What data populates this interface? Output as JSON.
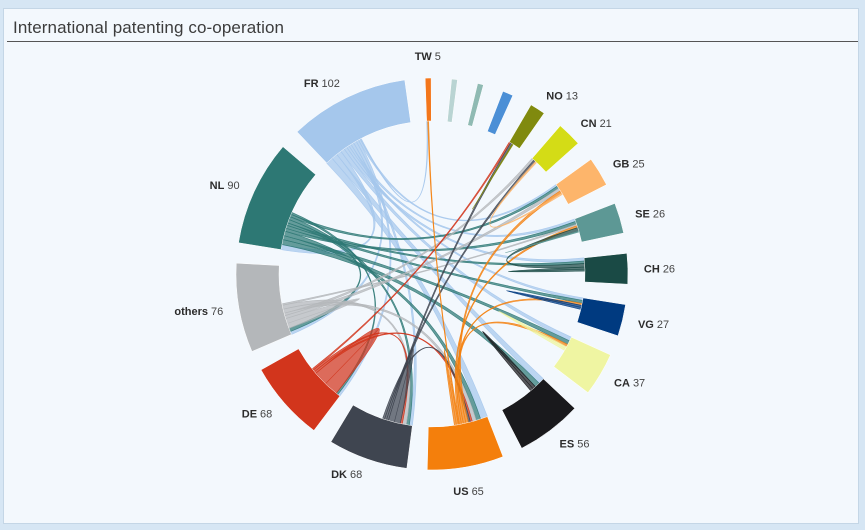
{
  "header": {
    "title": "International patenting co-operation"
  },
  "chart_data": {
    "type": "chord",
    "title": "International patenting co-operation",
    "nodes": [
      {
        "code": "TW",
        "value": 5,
        "color": "#f3761b"
      },
      {
        "code": "",
        "value": 5,
        "color": "#b9d4d3"
      },
      {
        "code": "",
        "value": 5,
        "color": "#8fbab3"
      },
      {
        "code": "",
        "value": 9,
        "color": "#4b8fd6"
      },
      {
        "code": "NO",
        "value": 13,
        "color": "#808a0e"
      },
      {
        "code": "CN",
        "value": 21,
        "color": "#d4dc16"
      },
      {
        "code": "GB",
        "value": 25,
        "color": "#fdb56b"
      },
      {
        "code": "SE",
        "value": 26,
        "color": "#5d9895"
      },
      {
        "code": "CH",
        "value": 26,
        "color": "#1a4a45"
      },
      {
        "code": "VG",
        "value": 27,
        "color": "#003a80"
      },
      {
        "code": "CA",
        "value": 37,
        "color": "#eff5a2"
      },
      {
        "code": "ES",
        "value": 56,
        "color": "#19191c"
      },
      {
        "code": "US",
        "value": 65,
        "color": "#f47f0c"
      },
      {
        "code": "DK",
        "value": 68,
        "color": "#3f4550"
      },
      {
        "code": "DE",
        "value": 68,
        "color": "#d2351c"
      },
      {
        "code": "others",
        "value": 76,
        "color": "#b4b7ba"
      },
      {
        "code": "NL",
        "value": 90,
        "color": "#2d7874"
      },
      {
        "code": "FR",
        "value": 102,
        "color": "#a5c7ec"
      }
    ],
    "links": [
      {
        "source": "FR",
        "target": "US",
        "value": 14
      },
      {
        "source": "FR",
        "target": "ES",
        "value": 12
      },
      {
        "source": "FR",
        "target": "NL",
        "value": 10
      },
      {
        "source": "FR",
        "target": "CA",
        "value": 8
      },
      {
        "source": "FR",
        "target": "CH",
        "value": 6
      },
      {
        "source": "FR",
        "target": "VG",
        "value": 5
      },
      {
        "source": "FR",
        "target": "SE",
        "value": 5
      },
      {
        "source": "FR",
        "target": "DK",
        "value": 6
      },
      {
        "source": "FR",
        "target": "others",
        "value": 6
      },
      {
        "source": "FR",
        "target": "DE",
        "value": 5
      },
      {
        "source": "FR",
        "target": "GB",
        "value": 4
      },
      {
        "source": "FR",
        "target": "TW",
        "value": 2
      },
      {
        "source": "NL",
        "target": "ES",
        "value": 10
      },
      {
        "source": "NL",
        "target": "CA",
        "value": 8
      },
      {
        "source": "NL",
        "target": "US",
        "value": 9
      },
      {
        "source": "NL",
        "target": "SE",
        "value": 6
      },
      {
        "source": "NL",
        "target": "VG",
        "value": 6
      },
      {
        "source": "NL",
        "target": "CH",
        "value": 5
      },
      {
        "source": "NL",
        "target": "others",
        "value": 7
      },
      {
        "source": "NL",
        "target": "DK",
        "value": 6
      },
      {
        "source": "NL",
        "target": "GB",
        "value": 5
      },
      {
        "source": "NL",
        "target": "DE",
        "value": 4
      },
      {
        "source": "others",
        "target": "others",
        "value": 10
      },
      {
        "source": "others",
        "target": "GB",
        "value": 6
      },
      {
        "source": "others",
        "target": "CN",
        "value": 5
      },
      {
        "source": "others",
        "target": "US",
        "value": 8
      },
      {
        "source": "others",
        "target": "DK",
        "value": 8
      },
      {
        "source": "others",
        "target": "SE",
        "value": 3
      },
      {
        "source": "DE",
        "target": "DE",
        "value": 28
      },
      {
        "source": "DE",
        "target": "US",
        "value": 4
      },
      {
        "source": "DE",
        "target": "DK",
        "value": 4
      },
      {
        "source": "DE",
        "target": "NO",
        "value": 3
      },
      {
        "source": "DK",
        "target": "DK",
        "value": 12
      },
      {
        "source": "DK",
        "target": "NO",
        "value": 4
      },
      {
        "source": "DK",
        "target": "CN",
        "value": 4
      },
      {
        "source": "DK",
        "target": "US",
        "value": 4
      },
      {
        "source": "US",
        "target": "GB",
        "value": 5
      },
      {
        "source": "US",
        "target": "CA",
        "value": 5
      },
      {
        "source": "US",
        "target": "VG",
        "value": 4
      },
      {
        "source": "US",
        "target": "SE",
        "value": 4
      },
      {
        "source": "US",
        "target": "TW",
        "value": 2
      },
      {
        "source": "US",
        "target": "US",
        "value": 4
      },
      {
        "source": "ES",
        "target": "ES",
        "value": 6
      },
      {
        "source": "CA",
        "target": "CA",
        "value": 4
      },
      {
        "source": "VG",
        "target": "VG",
        "value": 4
      },
      {
        "source": "CH",
        "target": "SE",
        "value": 7
      },
      {
        "source": "CH",
        "target": "CH",
        "value": 4
      },
      {
        "source": "SE",
        "target": "SE",
        "value": 1
      },
      {
        "source": "GB",
        "target": "CN",
        "value": 3
      },
      {
        "source": "NO",
        "target": "NO",
        "value": 1
      }
    ]
  }
}
